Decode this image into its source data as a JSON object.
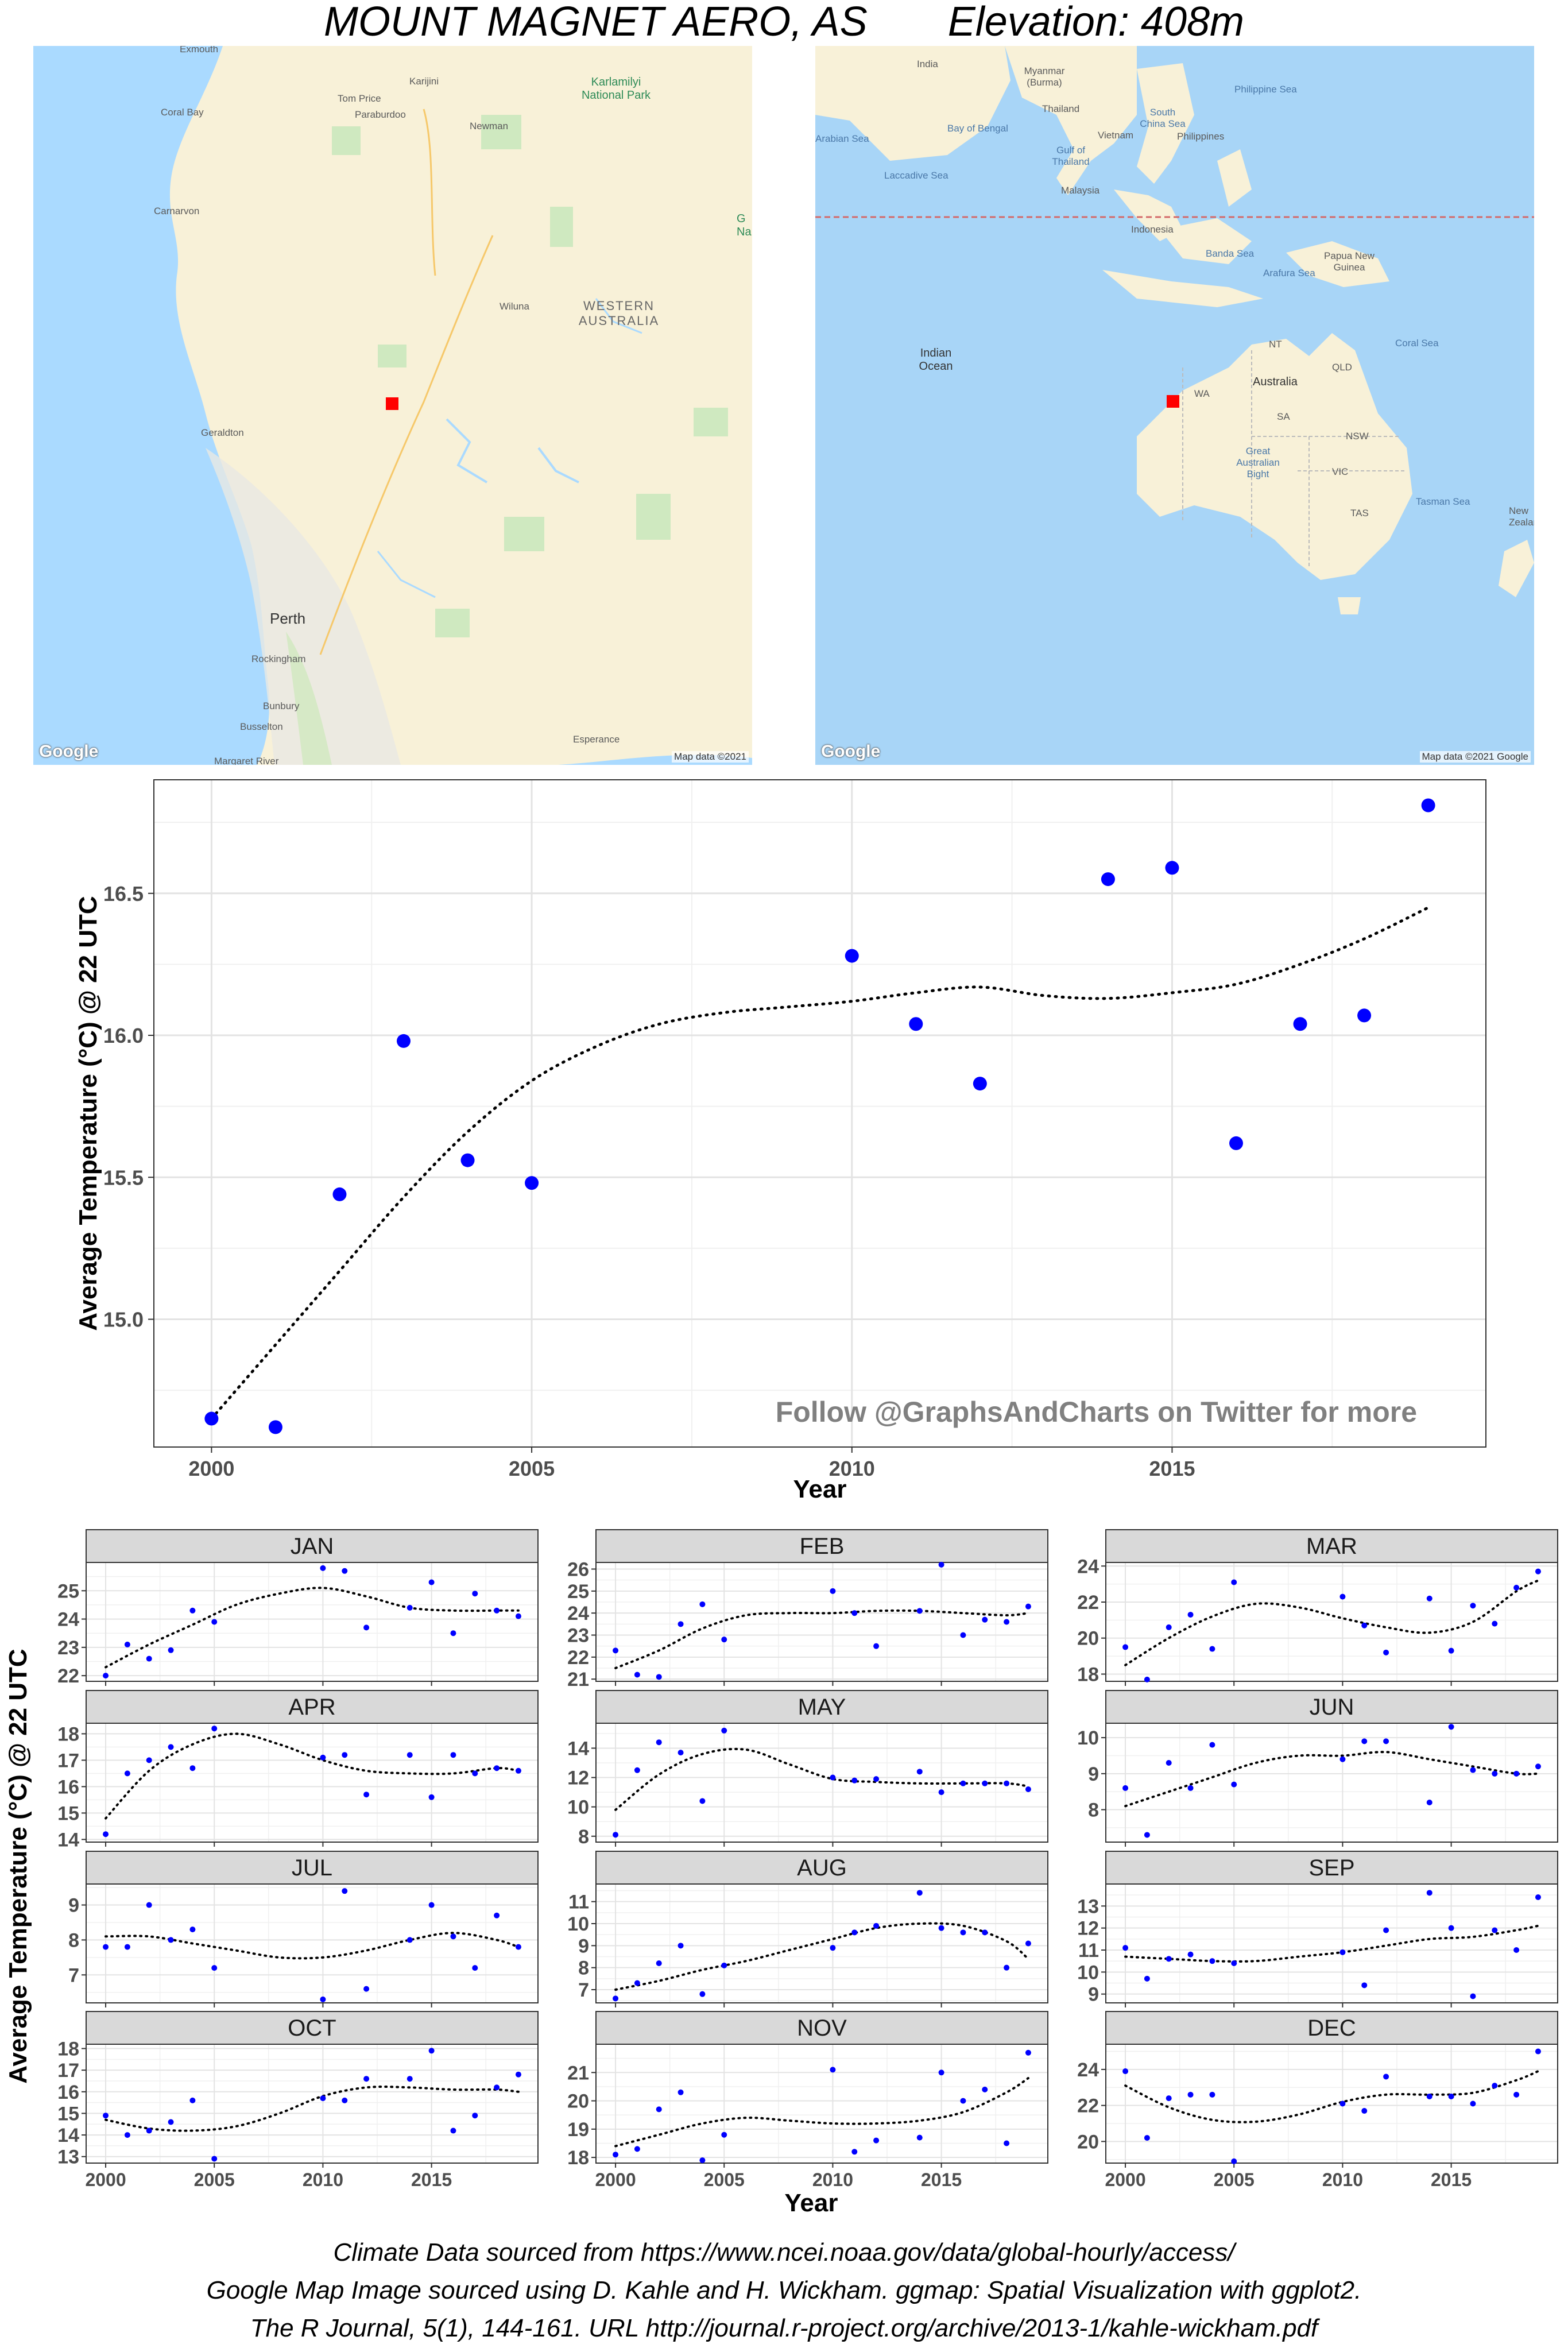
{
  "title": {
    "station": "MOUNT MAGNET AERO, AS",
    "elevation": "Elevation: 408m"
  },
  "maps": {
    "regional": {
      "labels": [
        "Exmouth",
        "Coral Bay",
        "Tom Price",
        "Karijini",
        "Paraburdoo",
        "Karlamilyi National Park",
        "Newman",
        "Carnarvon",
        "Wiluna",
        "WESTERN AUSTRALIA",
        "Geraldton",
        "Perth",
        "Rockingham",
        "Bunbury",
        "Busselton",
        "Esperance",
        "Margaret River",
        "G Na"
      ],
      "attribution": "Map data ©2021",
      "logo": "Google",
      "marker_color": "#ff0000"
    },
    "continental": {
      "labels": [
        "India",
        "Myanmar (Burma)",
        "Bay of Bengal",
        "Thailand",
        "South China Sea",
        "Philippine Sea",
        "Vietnam",
        "Philippines",
        "Arabian Sea",
        "Gulf of Thailand",
        "Laccadive Sea",
        "Malaysia",
        "Indonesia",
        "Banda Sea",
        "Papua New Guinea",
        "Arafura Sea",
        "Indian Ocean",
        "NT",
        "QLD",
        "Coral Sea",
        "WA",
        "Australia",
        "SA",
        "NSW",
        "Great Australian Bight",
        "VIC",
        "Tasman Sea",
        "TAS",
        "New Zealand"
      ],
      "attribution": "Map data ©2021 Google",
      "logo": "Google",
      "marker_color": "#ff0000"
    }
  },
  "chart_data": [
    {
      "type": "scatter",
      "title": "",
      "xlabel": "Year",
      "ylabel": "Average Temperature (°C) @ 22 UTC",
      "xlim": [
        1999.1,
        2019.9
      ],
      "ylim": [
        14.55,
        16.9
      ],
      "xticks": [
        2000,
        2005,
        2010,
        2015
      ],
      "yticks": [
        15.0,
        15.5,
        16.0,
        16.5
      ],
      "ytick_labels": [
        "15.0",
        "15.5",
        "16.0",
        "16.5"
      ],
      "grid": true,
      "point_color": "#0000ff",
      "trend_style": "dotted smooth",
      "annotation": "Follow @GraphsAndCharts on Twitter for more",
      "x": [
        2000,
        2001,
        2002,
        2003,
        2004,
        2005,
        2010,
        2011,
        2012,
        2014,
        2015,
        2016,
        2017,
        2018,
        2019
      ],
      "y": [
        14.65,
        14.62,
        15.44,
        15.98,
        15.56,
        15.48,
        16.28,
        16.04,
        15.83,
        16.55,
        16.59,
        15.62,
        16.04,
        16.07,
        16.81
      ],
      "trend_x": [
        2000,
        2001,
        2002,
        2003,
        2004,
        2005,
        2006,
        2007,
        2008,
        2009,
        2010,
        2011,
        2012,
        2013,
        2014,
        2015,
        2016,
        2017,
        2018,
        2019
      ],
      "trend_y": [
        14.65,
        14.91,
        15.17,
        15.43,
        15.66,
        15.84,
        15.96,
        16.04,
        16.08,
        16.1,
        16.12,
        16.15,
        16.17,
        16.14,
        16.13,
        16.15,
        16.18,
        16.25,
        16.34,
        16.45
      ]
    },
    {
      "type": "scatter",
      "facet": "JAN",
      "xlim": [
        1999.1,
        2019.9
      ],
      "ylim": [
        21.8,
        26.0
      ],
      "yticks": [
        22,
        23,
        24,
        25
      ],
      "x": [
        2000,
        2001,
        2002,
        2003,
        2004,
        2005,
        2010,
        2011,
        2012,
        2014,
        2015,
        2016,
        2017,
        2018,
        2019
      ],
      "y": [
        22.0,
        23.1,
        22.6,
        22.9,
        24.3,
        23.9,
        25.8,
        25.7,
        23.7,
        24.4,
        25.3,
        23.5,
        24.9,
        24.3,
        24.1
      ],
      "trend_x": [
        2000,
        2002,
        2004,
        2006,
        2008,
        2010,
        2012,
        2014,
        2016,
        2018,
        2019
      ],
      "trend_y": [
        22.3,
        23.1,
        23.8,
        24.5,
        24.9,
        25.1,
        24.8,
        24.4,
        24.3,
        24.3,
        24.3
      ]
    },
    {
      "type": "scatter",
      "facet": "FEB",
      "xlim": [
        1999.1,
        2019.9
      ],
      "ylim": [
        20.9,
        26.3
      ],
      "yticks": [
        21,
        22,
        23,
        24,
        25,
        26
      ],
      "x": [
        2000,
        2001,
        2002,
        2003,
        2004,
        2005,
        2010,
        2011,
        2012,
        2014,
        2015,
        2016,
        2017,
        2018,
        2019
      ],
      "y": [
        22.3,
        21.2,
        21.1,
        23.5,
        24.4,
        22.8,
        25.0,
        24.0,
        22.5,
        24.1,
        26.2,
        23.0,
        23.7,
        23.6,
        24.3
      ],
      "trend_x": [
        2000,
        2002,
        2004,
        2006,
        2008,
        2010,
        2012,
        2014,
        2016,
        2018,
        2019
      ],
      "trend_y": [
        21.5,
        22.3,
        23.3,
        23.9,
        24.0,
        24.0,
        24.1,
        24.1,
        24.0,
        23.9,
        24.0
      ]
    },
    {
      "type": "scatter",
      "facet": "MAR",
      "xlim": [
        1999.1,
        2019.9
      ],
      "ylim": [
        17.6,
        24.2
      ],
      "yticks": [
        18,
        20,
        22,
        24
      ],
      "x": [
        2000,
        2001,
        2002,
        2003,
        2004,
        2005,
        2010,
        2011,
        2012,
        2014,
        2015,
        2016,
        2017,
        2018,
        2019
      ],
      "y": [
        19.5,
        17.7,
        20.6,
        21.3,
        19.4,
        23.1,
        22.3,
        20.7,
        19.2,
        22.2,
        19.3,
        21.8,
        20.8,
        22.8,
        23.7
      ],
      "trend_x": [
        2000,
        2002,
        2004,
        2006,
        2008,
        2010,
        2012,
        2014,
        2016,
        2018,
        2019
      ],
      "trend_y": [
        18.5,
        20.0,
        21.2,
        21.9,
        21.7,
        21.1,
        20.6,
        20.3,
        20.9,
        22.6,
        23.2
      ]
    },
    {
      "type": "scatter",
      "facet": "APR",
      "xlim": [
        1999.1,
        2019.9
      ],
      "ylim": [
        13.9,
        18.4
      ],
      "yticks": [
        14,
        15,
        16,
        17,
        18
      ],
      "x": [
        2000,
        2001,
        2002,
        2003,
        2004,
        2005,
        2010,
        2011,
        2012,
        2014,
        2015,
        2016,
        2017,
        2018,
        2019
      ],
      "y": [
        14.2,
        16.5,
        17.0,
        17.5,
        16.7,
        18.2,
        17.1,
        17.2,
        15.7,
        17.2,
        15.6,
        17.2,
        16.5,
        16.7,
        16.6
      ],
      "trend_x": [
        2000,
        2002,
        2004,
        2006,
        2008,
        2010,
        2012,
        2014,
        2016,
        2018,
        2019
      ],
      "trend_y": [
        14.8,
        16.6,
        17.6,
        18.0,
        17.6,
        17.0,
        16.6,
        16.5,
        16.5,
        16.7,
        16.6
      ]
    },
    {
      "type": "scatter",
      "facet": "MAY",
      "xlim": [
        1999.1,
        2019.9
      ],
      "ylim": [
        7.6,
        15.7
      ],
      "yticks": [
        8,
        10,
        12,
        14
      ],
      "x": [
        2000,
        2001,
        2002,
        2003,
        2004,
        2005,
        2010,
        2011,
        2012,
        2014,
        2015,
        2016,
        2017,
        2018,
        2019
      ],
      "y": [
        8.1,
        12.5,
        14.4,
        13.7,
        10.4,
        15.2,
        12.0,
        11.8,
        11.9,
        12.4,
        11.0,
        11.6,
        11.6,
        11.6,
        11.2
      ],
      "trend_x": [
        2000,
        2002,
        2004,
        2006,
        2008,
        2010,
        2012,
        2014,
        2016,
        2018,
        2019
      ],
      "trend_y": [
        9.8,
        12.2,
        13.6,
        13.9,
        12.9,
        11.9,
        11.7,
        11.6,
        11.6,
        11.6,
        11.4
      ]
    },
    {
      "type": "scatter",
      "facet": "JUN",
      "xlim": [
        1999.1,
        2019.9
      ],
      "ylim": [
        7.1,
        10.4
      ],
      "yticks": [
        8,
        9,
        10
      ],
      "x": [
        2000,
        2001,
        2002,
        2003,
        2004,
        2005,
        2010,
        2011,
        2012,
        2014,
        2015,
        2016,
        2017,
        2018,
        2019
      ],
      "y": [
        8.6,
        7.3,
        9.3,
        8.6,
        9.8,
        8.7,
        9.4,
        9.9,
        9.9,
        8.2,
        10.3,
        9.1,
        9.0,
        9.0,
        9.2
      ],
      "trend_x": [
        2000,
        2002,
        2004,
        2006,
        2008,
        2010,
        2012,
        2014,
        2016,
        2018,
        2019
      ],
      "trend_y": [
        8.1,
        8.5,
        8.9,
        9.3,
        9.5,
        9.5,
        9.6,
        9.4,
        9.2,
        9.0,
        9.0
      ]
    },
    {
      "type": "scatter",
      "facet": "JUL",
      "xlim": [
        1999.1,
        2019.9
      ],
      "ylim": [
        6.2,
        9.6
      ],
      "yticks": [
        7,
        8,
        9
      ],
      "x": [
        2000,
        2001,
        2002,
        2003,
        2004,
        2005,
        2010,
        2011,
        2012,
        2014,
        2015,
        2016,
        2017,
        2018,
        2019
      ],
      "y": [
        7.8,
        7.8,
        9.0,
        8.0,
        8.3,
        7.2,
        6.3,
        9.4,
        6.6,
        8.0,
        9.0,
        8.1,
        7.2,
        8.7,
        7.8
      ],
      "trend_x": [
        2000,
        2002,
        2004,
        2006,
        2008,
        2010,
        2012,
        2014,
        2016,
        2018,
        2019
      ],
      "trend_y": [
        8.1,
        8.1,
        7.9,
        7.7,
        7.5,
        7.5,
        7.7,
        8.0,
        8.2,
        8.0,
        7.8
      ]
    },
    {
      "type": "scatter",
      "facet": "AUG",
      "xlim": [
        1999.1,
        2019.9
      ],
      "ylim": [
        6.4,
        11.8
      ],
      "yticks": [
        7,
        8,
        9,
        10,
        11
      ],
      "x": [
        2000,
        2001,
        2002,
        2003,
        2004,
        2005,
        2010,
        2011,
        2012,
        2014,
        2015,
        2016,
        2017,
        2018,
        2019
      ],
      "y": [
        6.6,
        7.3,
        8.2,
        9.0,
        6.8,
        8.1,
        8.9,
        9.6,
        9.9,
        11.4,
        9.8,
        9.6,
        9.6,
        8.0,
        9.1
      ],
      "trend_x": [
        2000,
        2002,
        2004,
        2006,
        2008,
        2010,
        2012,
        2014,
        2016,
        2018,
        2019
      ],
      "trend_y": [
        7.0,
        7.4,
        7.9,
        8.3,
        8.8,
        9.3,
        9.8,
        10.0,
        9.9,
        9.2,
        8.4
      ]
    },
    {
      "type": "scatter",
      "facet": "SEP",
      "xlim": [
        1999.1,
        2019.9
      ],
      "ylim": [
        8.6,
        14.0
      ],
      "yticks": [
        9,
        10,
        11,
        12,
        13
      ],
      "x": [
        2000,
        2001,
        2002,
        2003,
        2004,
        2005,
        2010,
        2011,
        2012,
        2014,
        2015,
        2016,
        2017,
        2018,
        2019
      ],
      "y": [
        11.1,
        9.7,
        10.6,
        10.8,
        10.5,
        10.4,
        10.9,
        9.4,
        11.9,
        13.6,
        12.0,
        8.9,
        11.9,
        11.0,
        13.4
      ],
      "trend_x": [
        2000,
        2002,
        2004,
        2006,
        2008,
        2010,
        2012,
        2014,
        2016,
        2018,
        2019
      ],
      "trend_y": [
        10.7,
        10.6,
        10.5,
        10.5,
        10.7,
        10.9,
        11.2,
        11.5,
        11.6,
        11.9,
        12.1
      ]
    },
    {
      "type": "scatter",
      "facet": "OCT",
      "xlim": [
        1999.1,
        2019.9
      ],
      "ylim": [
        12.7,
        18.2
      ],
      "yticks": [
        13,
        14,
        15,
        16,
        17,
        18
      ],
      "x": [
        2000,
        2001,
        2002,
        2003,
        2004,
        2005,
        2010,
        2011,
        2012,
        2014,
        2015,
        2016,
        2017,
        2018,
        2019
      ],
      "y": [
        14.9,
        14.0,
        14.2,
        14.6,
        15.6,
        12.9,
        15.7,
        15.6,
        16.6,
        16.6,
        17.9,
        14.2,
        14.9,
        16.2,
        16.8
      ],
      "trend_x": [
        2000,
        2002,
        2004,
        2006,
        2008,
        2010,
        2012,
        2014,
        2016,
        2018,
        2019
      ],
      "trend_y": [
        14.7,
        14.3,
        14.2,
        14.4,
        15.0,
        15.8,
        16.2,
        16.2,
        16.1,
        16.1,
        16.0
      ]
    },
    {
      "type": "scatter",
      "facet": "NOV",
      "xlim": [
        1999.1,
        2019.9
      ],
      "ylim": [
        17.8,
        22.0
      ],
      "yticks": [
        18,
        19,
        20,
        21
      ],
      "x": [
        2000,
        2001,
        2002,
        2003,
        2004,
        2005,
        2010,
        2011,
        2012,
        2014,
        2015,
        2016,
        2017,
        2018,
        2019
      ],
      "y": [
        18.1,
        18.3,
        19.7,
        20.3,
        17.9,
        18.8,
        21.1,
        18.2,
        18.6,
        18.7,
        21.0,
        20.0,
        20.4,
        18.5,
        21.7
      ],
      "trend_x": [
        2000,
        2002,
        2004,
        2006,
        2008,
        2010,
        2012,
        2014,
        2016,
        2018,
        2019
      ],
      "trend_y": [
        18.4,
        18.8,
        19.2,
        19.4,
        19.3,
        19.2,
        19.2,
        19.3,
        19.6,
        20.3,
        20.8
      ]
    },
    {
      "type": "scatter",
      "facet": "DEC",
      "xlim": [
        1999.1,
        2019.9
      ],
      "ylim": [
        18.8,
        25.4
      ],
      "yticks": [
        20,
        22,
        24
      ],
      "x": [
        2000,
        2001,
        2002,
        2003,
        2004,
        2005,
        2010,
        2011,
        2012,
        2014,
        2015,
        2016,
        2017,
        2018,
        2019
      ],
      "y": [
        23.9,
        20.2,
        22.4,
        22.6,
        22.6,
        18.9,
        22.1,
        21.7,
        23.6,
        22.5,
        22.5,
        22.1,
        23.1,
        22.6,
        25.0
      ],
      "trend_x": [
        2000,
        2002,
        2004,
        2006,
        2008,
        2010,
        2012,
        2014,
        2016,
        2018,
        2019
      ],
      "trend_y": [
        23.1,
        21.9,
        21.2,
        21.1,
        21.5,
        22.2,
        22.6,
        22.6,
        22.7,
        23.4,
        23.9
      ]
    }
  ],
  "facets_common": {
    "xticks": [
      2000,
      2005,
      2010,
      2015
    ],
    "xlabel": "Year",
    "ylabel": "Average Temperature (°C) @ 22 UTC"
  },
  "credits": [
    "Climate Data sourced from https://www.ncei.noaa.gov/data/global-hourly/access/",
    "Google Map Image sourced using D. Kahle and H. Wickham. ggmap: Spatial Visualization with ggplot2.",
    "The R Journal, 5(1), 144-161. URL http://journal.r-project.org/archive/2013-1/kahle-wickham.pdf"
  ]
}
